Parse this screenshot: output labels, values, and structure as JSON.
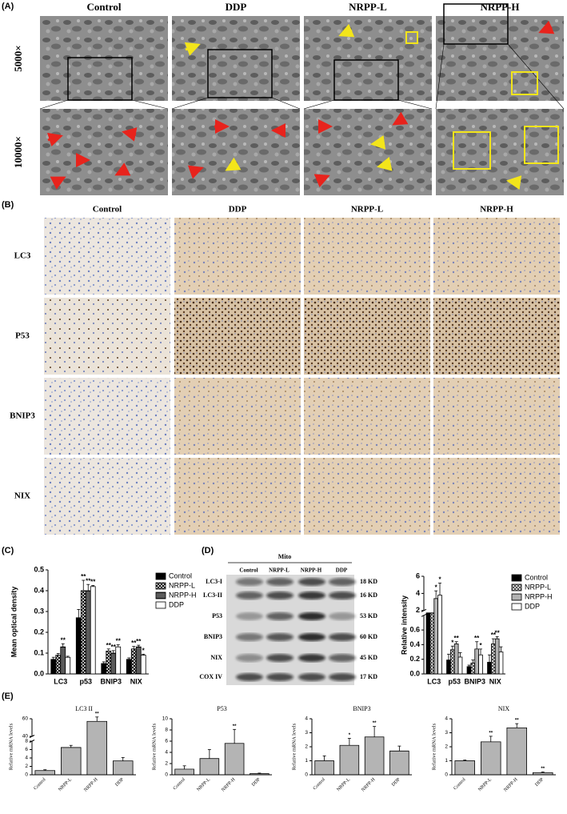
{
  "panel_labels": [
    "(A)",
    "(B)",
    "(C)",
    "(D)",
    "(E)"
  ],
  "tem": {
    "groups": [
      "Control",
      "DDP",
      "NRPP-L",
      "NRPP-H"
    ],
    "magnifications": [
      "5000×",
      "10000×"
    ]
  },
  "ihc": {
    "groups": [
      "Control",
      "DDP",
      "NRPP-L",
      "NRPP-H"
    ],
    "markers": [
      "LC3",
      "P53",
      "BNIP3",
      "NIX"
    ]
  },
  "blot": {
    "header": "Mito",
    "lanes": [
      "Control",
      "NRPP-L",
      "NRPP-H",
      "DDP"
    ],
    "bands": [
      {
        "name": "LC3-I",
        "size": "18 KD"
      },
      {
        "name": "LC3-II",
        "size": "16 KD"
      },
      {
        "name": "P53",
        "size": "53 KD"
      },
      {
        "name": "BNIP3",
        "size": "60 KD"
      },
      {
        "name": "NIX",
        "size": "45 KD"
      },
      {
        "name": "COX IV",
        "size": "17 KD"
      }
    ]
  },
  "chart_data": [
    {
      "type": "bar",
      "ylabel": "Mean optical density",
      "categories": [
        "LC3",
        "p53",
        "BNIP3",
        "NIX"
      ],
      "ylim": [
        0,
        0.5
      ],
      "yticks": [
        {
          "value": 0,
          "label": "0.0"
        },
        0.1,
        0.2,
        0.3,
        0.4,
        0.5
      ],
      "legend": "right",
      "series": [
        {
          "name": "Control",
          "color": "#000000",
          "pattern": "solid",
          "values": [
            0.07,
            0.27,
            0.05,
            0.07
          ],
          "errors": [
            0.01,
            0.04,
            0.008,
            0.007
          ]
        },
        {
          "name": "NRPP-L",
          "color": "#000000",
          "pattern": "crosshatch",
          "values": [
            0.09,
            0.4,
            0.11,
            0.12
          ],
          "errors": [
            0.008,
            0.05,
            0.01,
            0.012
          ],
          "significance": [
            null,
            "**",
            "**",
            "**"
          ]
        },
        {
          "name": "NRPP-H",
          "color": "#000000",
          "pattern": "horizontal",
          "values": [
            0.13,
            0.4,
            0.1,
            0.13
          ],
          "errors": [
            0.015,
            0.03,
            0.012,
            0.008
          ],
          "significance": [
            "**",
            "**",
            "**",
            "**"
          ]
        },
        {
          "name": "DDP",
          "color": "#000000",
          "pattern": "none",
          "values": [
            0.08,
            0.42,
            0.13,
            0.09
          ],
          "errors": [
            0.005,
            0.005,
            0.01,
            0.005
          ],
          "significance": [
            null,
            "**",
            "**",
            "*"
          ]
        }
      ]
    },
    {
      "type": "bar",
      "ylabel": "Relative intensity",
      "categories": [
        "LC3",
        "p53",
        "BNIP3",
        "NIX"
      ],
      "ylim": [
        0,
        6
      ],
      "axis_break": [
        0.8,
        2
      ],
      "yticks": [
        {
          "value": 0,
          "label": "0.0"
        },
        0.2,
        0.4,
        0.6,
        2,
        4,
        6
      ],
      "legend": "right",
      "series": [
        {
          "name": "Control",
          "color": "#000000",
          "pattern": "solid",
          "values": [
            1.0,
            0.19,
            0.1,
            0.16
          ],
          "errors": [
            0.3,
            0.08,
            0.02,
            0.1
          ]
        },
        {
          "name": "NRPP-L",
          "color": "#444444",
          "pattern": "crosshatch",
          "values": [
            1.5,
            0.33,
            0.15,
            0.41
          ],
          "errors": [
            0.4,
            0.05,
            0.04,
            0.07
          ],
          "significance": [
            null,
            "*",
            null,
            "**"
          ]
        },
        {
          "name": "NRPP-H",
          "color": "#888888",
          "pattern": "horizontal",
          "values": [
            3.4,
            0.41,
            0.34,
            0.48
          ],
          "errors": [
            0.9,
            0.03,
            0.1,
            0.03
          ],
          "significance": [
            "*",
            "**",
            "**",
            "**"
          ]
        },
        {
          "name": "DDP",
          "color": "#000000",
          "pattern": "none",
          "values": [
            3.8,
            0.23,
            0.26,
            0.3
          ],
          "errors": [
            1.4,
            0.06,
            0.08,
            0.07
          ],
          "significance": [
            "*",
            null,
            "*",
            null
          ]
        }
      ]
    },
    {
      "type": "bar",
      "title": "LC3 II",
      "ylabel": "Relative mRNA levels",
      "categories": [
        "Control",
        "NRPP-L",
        "NRPP-H",
        "DDP"
      ],
      "ylim": [
        0,
        60
      ],
      "axis_break": [
        8,
        40
      ],
      "yticks": [
        0,
        2,
        4,
        6,
        8,
        40,
        60
      ],
      "color": "#8c8c8c",
      "pattern": "horizontal",
      "values": [
        1.0,
        6.5,
        57,
        3.3
      ],
      "errors": [
        0.2,
        0.5,
        5,
        0.8
      ],
      "significance": [
        null,
        null,
        "**",
        null
      ]
    },
    {
      "type": "bar",
      "title": "P53",
      "ylabel": "Relative mRNA levels",
      "categories": [
        "Control",
        "NRPP-L",
        "NRPP-H",
        "DDP"
      ],
      "ylim": [
        0,
        10
      ],
      "yticks": [
        0,
        2,
        4,
        6,
        8,
        10
      ],
      "color": "#8c8c8c",
      "pattern": "horizontal",
      "values": [
        1.0,
        2.9,
        5.6,
        0.2
      ],
      "errors": [
        0.6,
        1.6,
        2.5,
        0.1
      ],
      "significance": [
        null,
        null,
        "**",
        null
      ]
    },
    {
      "type": "bar",
      "title": "BNIP3",
      "ylabel": "Relative mRNA levels",
      "categories": [
        "Control",
        "NRPP-L",
        "NRPP-H",
        "DDP"
      ],
      "ylim": [
        0,
        4
      ],
      "yticks": [
        0,
        1,
        2,
        3,
        4
      ],
      "color": "#8c8c8c",
      "pattern": "horizontal",
      "values": [
        1.0,
        2.1,
        2.7,
        1.7
      ],
      "errors": [
        0.35,
        0.5,
        0.75,
        0.35
      ],
      "significance": [
        null,
        "*",
        "**",
        null
      ]
    },
    {
      "type": "bar",
      "title": "NIX",
      "ylabel": "Relative mRNA levels",
      "categories": [
        "Control",
        "NRPP-L",
        "NRPP-H",
        "DDP"
      ],
      "ylim": [
        0,
        4
      ],
      "yticks": [
        0,
        1,
        2,
        3,
        4
      ],
      "color": "#8c8c8c",
      "pattern": "horizontal",
      "values": [
        1.0,
        2.35,
        3.35,
        0.15
      ],
      "errors": [
        0.05,
        0.4,
        0.3,
        0.05
      ],
      "significance": [
        null,
        "**",
        "**",
        "**"
      ]
    }
  ]
}
